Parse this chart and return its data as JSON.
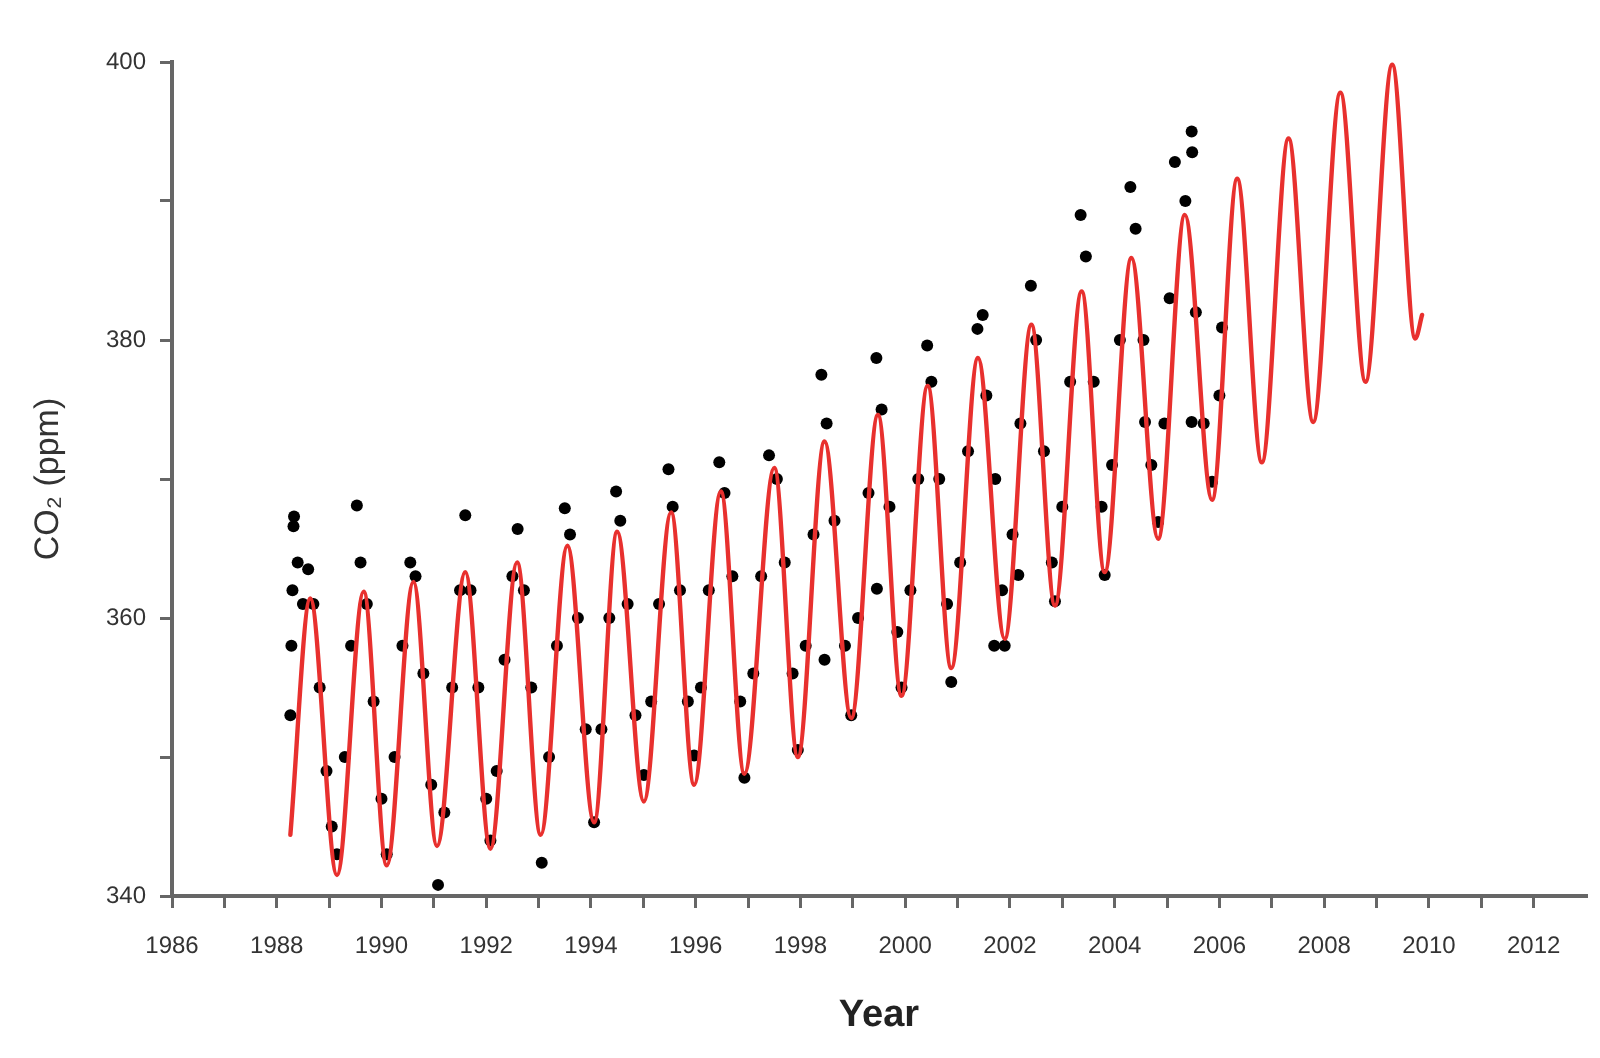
{
  "chart_data": {
    "type": "scatter",
    "xlabel": "Year",
    "ylabel": "CO₂ (ppm)",
    "marker": "circle",
    "xlim": [
      1986,
      2013
    ],
    "ylim": [
      340,
      400
    ],
    "xticks": [
      1986,
      {
        "value": 1987,
        "label": null
      },
      1988,
      {
        "value": 1989,
        "label": null
      },
      1990,
      {
        "value": 1991,
        "label": null
      },
      1992,
      {
        "value": 1993,
        "label": null
      },
      1994,
      {
        "value": 1995,
        "label": null
      },
      1996,
      {
        "value": 1997,
        "label": null
      },
      1998,
      {
        "value": 1999,
        "label": null
      },
      2000,
      {
        "value": 2001,
        "label": null
      },
      2002,
      {
        "value": 2003,
        "label": null
      },
      2004,
      {
        "value": 2005,
        "label": null
      },
      2006,
      {
        "value": 2007,
        "label": null
      },
      2008,
      {
        "value": 2009,
        "label": null
      },
      2010,
      {
        "value": 2011,
        "label": null
      },
      2012
    ],
    "yticks": [
      340,
      {
        "value": 350,
        "label": null
      },
      360,
      {
        "value": 370,
        "label": null
      },
      380,
      {
        "value": 390,
        "label": null
      },
      400
    ],
    "series": [
      {
        "color": "#000000",
        "x": [
          1988.26,
          1988.28,
          1988.3,
          1988.32,
          1988.33,
          1988.4,
          1988.5,
          1988.6,
          1988.7,
          1988.82,
          1988.95,
          1989.05,
          1989.15,
          1989.3,
          1989.42,
          1989.53,
          1989.6,
          1989.72,
          1989.85,
          1990.0,
          1990.1,
          1990.25,
          1990.4,
          1990.55,
          1990.65,
          1990.8,
          1990.95,
          1991.08,
          1991.2,
          1991.35,
          1991.5,
          1991.6,
          1991.7,
          1991.85,
          1992.0,
          1992.08,
          1992.2,
          1992.35,
          1992.5,
          1992.6,
          1992.72,
          1992.86,
          1993.06,
          1993.2,
          1993.35,
          1993.5,
          1993.6,
          1993.75,
          1993.9,
          1994.06,
          1994.2,
          1994.35,
          1994.48,
          1994.56,
          1994.7,
          1994.85,
          1995.01,
          1995.15,
          1995.3,
          1995.48,
          1995.56,
          1995.7,
          1995.85,
          1995.97,
          1996.1,
          1996.25,
          1996.45,
          1996.55,
          1996.7,
          1996.85,
          1996.93,
          1997.1,
          1997.25,
          1997.4,
          1997.55,
          1997.7,
          1997.85,
          1997.95,
          1998.1,
          1998.25,
          1998.4,
          1998.46,
          1998.5,
          1998.65,
          1998.85,
          1998.97,
          1999.1,
          1999.3,
          1999.45,
          1999.46,
          1999.55,
          1999.7,
          1999.85,
          1999.93,
          2000.1,
          2000.25,
          2000.42,
          2000.5,
          2000.65,
          2000.8,
          2000.88,
          2001.05,
          2001.2,
          2001.38,
          2001.48,
          2001.55,
          2001.7,
          2001.72,
          2001.85,
          2001.9,
          2002.05,
          2002.16,
          2002.2,
          2002.4,
          2002.5,
          2002.65,
          2002.8,
          2002.86,
          2003.0,
          2003.15,
          2003.35,
          2003.45,
          2003.6,
          2003.75,
          2003.81,
          2003.95,
          2004.1,
          2004.3,
          2004.4,
          2004.55,
          2004.58,
          2004.7,
          2004.83,
          2004.95,
          2005.05,
          2005.15,
          2005.35,
          2005.47,
          2005.48,
          2005.47,
          2005.55,
          2005.7,
          2005.86,
          2006.0,
          2006.05
        ],
        "values": [
          353,
          358,
          362,
          366.6,
          367.3,
          364,
          361,
          363.5,
          361,
          355,
          349,
          345,
          343,
          350,
          358,
          368.1,
          364,
          361,
          354,
          347,
          343,
          350,
          358,
          364,
          363,
          356,
          348,
          340.8,
          346,
          355,
          362,
          367.4,
          362,
          355,
          347,
          344,
          349,
          357,
          363,
          366.4,
          362,
          355,
          342.4,
          350,
          358,
          367.9,
          366,
          360,
          352,
          345.3,
          352,
          360,
          369.1,
          367,
          361,
          353,
          348.7,
          354,
          361,
          370.7,
          368,
          362,
          354,
          350.1,
          355,
          362,
          371.2,
          369,
          363,
          354,
          348.5,
          356,
          363,
          371.7,
          370,
          364,
          356,
          350.5,
          358,
          366,
          377.5,
          357,
          374,
          367,
          358,
          353,
          360,
          369,
          378.7,
          362.1,
          375,
          368,
          359,
          355,
          362,
          370,
          379.6,
          377,
          370,
          361,
          355.4,
          364,
          372,
          380.8,
          381.8,
          376,
          358,
          370,
          362,
          358,
          366,
          363.1,
          374,
          383.9,
          380,
          372,
          364,
          361.2,
          368,
          377,
          389,
          386,
          377,
          368,
          363.1,
          371,
          380,
          391,
          388,
          380,
          374.1,
          371,
          366.9,
          374,
          383,
          392.8,
          390,
          395,
          393.5,
          374.1,
          382,
          374,
          369.8,
          376,
          380.9
        ]
      },
      {
        "type": "line",
        "color": "#e8302e",
        "marker": "none",
        "line_style": "solid",
        "x": [
          1988.26,
          1988.64,
          1989.15,
          1989.66,
          1990.1,
          1990.61,
          1991.06,
          1991.6,
          1992.08,
          1992.59,
          1993.04,
          1993.55,
          1994.06,
          1994.5,
          1995.01,
          1995.53,
          1995.97,
          1996.48,
          1996.93,
          1997.5,
          1997.95,
          1998.46,
          1998.97,
          1999.48,
          1999.93,
          2000.43,
          2000.88,
          2001.39,
          2001.9,
          2002.41,
          2002.86,
          2003.37,
          2003.81,
          2004.32,
          2004.83,
          2005.34,
          2005.86,
          2006.34,
          2006.81,
          2007.32,
          2007.79,
          2008.31,
          2008.79,
          2009.3,
          2009.74,
          2009.87
        ],
        "values": [
          344.4,
          361.4,
          341.5,
          361.9,
          342.2,
          362.6,
          343.6,
          363.3,
          343.4,
          364.0,
          344.4,
          365.2,
          345.3,
          366.2,
          346.8,
          367.6,
          348.0,
          369.1,
          348.8,
          370.8,
          350.0,
          372.7,
          352.8,
          374.6,
          354.4,
          376.7,
          356.4,
          378.7,
          358.5,
          381.1,
          360.9,
          383.5,
          363.3,
          385.9,
          365.7,
          389.0,
          368.5,
          391.6,
          371.2,
          394.5,
          374.1,
          397.8,
          377.0,
          399.8,
          380.1,
          381.8
        ]
      }
    ]
  }
}
